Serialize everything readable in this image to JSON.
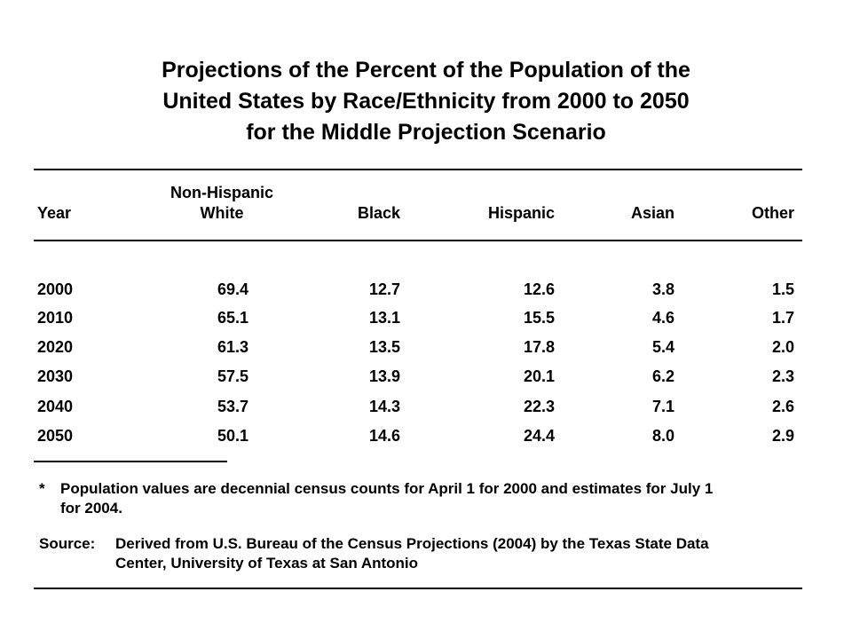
{
  "title": {
    "line1": "Projections of the Percent of the Population of the",
    "line2": "United States by Race/Ethnicity from 2000 to 2050",
    "line3": "for the Middle Projection Scenario"
  },
  "table": {
    "headers": {
      "year": "Year",
      "white_top": "Non-Hispanic",
      "white_bottom": "White",
      "black": "Black",
      "hispanic": "Hispanic",
      "asian": "Asian",
      "other": "Other"
    },
    "rows": [
      [
        "2000",
        "69.4",
        "12.7",
        "12.6",
        "3.8",
        "1.5"
      ],
      [
        "2010",
        "65.1",
        "13.1",
        "15.5",
        "4.6",
        "1.7"
      ],
      [
        "2020",
        "61.3",
        "13.5",
        "17.8",
        "5.4",
        "2.0"
      ],
      [
        "2030",
        "57.5",
        "13.9",
        "20.1",
        "6.2",
        "2.3"
      ],
      [
        "2040",
        "53.7",
        "14.3",
        "22.3",
        "7.1",
        "2.6"
      ],
      [
        "2050",
        "50.1",
        "14.6",
        "24.4",
        "8.0",
        "2.9"
      ]
    ]
  },
  "footnote": {
    "marker": "*",
    "line1": "Population values are decennial census counts for April 1 for 2000 and estimates for July 1",
    "line2": "for 2004."
  },
  "source": {
    "label": "Source:",
    "line1": "Derived from U.S. Bureau of the Census Projections (2004) by the Texas State Data",
    "line2": "Center, University of Texas at San Antonio"
  }
}
